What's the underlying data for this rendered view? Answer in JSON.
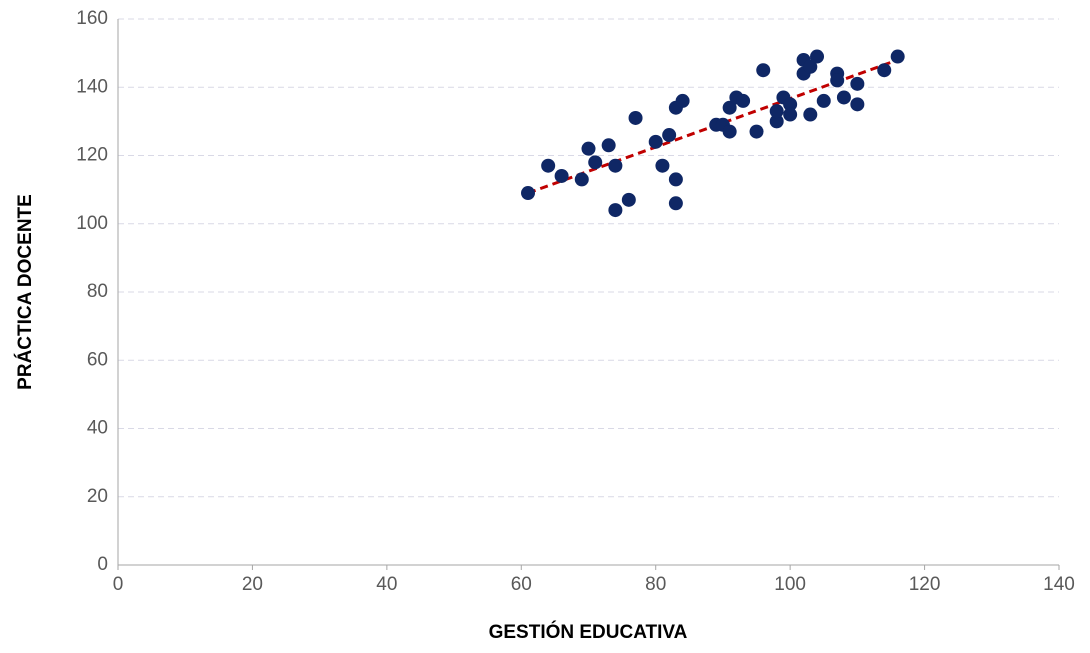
{
  "chart_data": {
    "type": "scatter",
    "x_label": "GESTIÓN EDUCATIVA",
    "y_label": "PRÁCTICA DOCENTE",
    "xlim": [
      0,
      140
    ],
    "xticks": [
      0,
      20,
      40,
      60,
      80,
      100,
      120,
      140
    ],
    "ylim": [
      0,
      160
    ],
    "yticks": [
      0,
      20,
      40,
      60,
      80,
      100,
      120,
      140,
      160
    ],
    "grid": true,
    "color": "#0f2765",
    "x": [
      61,
      64,
      66,
      69,
      70,
      71,
      73,
      74,
      74,
      76,
      77,
      80,
      81,
      82,
      83,
      84,
      83,
      83,
      89,
      90,
      91,
      91,
      92,
      93,
      95,
      96,
      98,
      98,
      99,
      100,
      100,
      102,
      102,
      103,
      103,
      104,
      105,
      107,
      107,
      108,
      110,
      110,
      114,
      116
    ],
    "values": [
      109,
      117,
      114,
      113,
      122,
      118,
      123,
      117,
      104,
      107,
      131,
      124,
      117,
      126,
      134,
      136,
      113,
      106,
      129,
      129,
      134,
      127,
      137,
      136,
      127,
      145,
      130,
      133,
      137,
      135,
      132,
      144,
      148,
      146,
      132,
      149,
      136,
      144,
      142,
      137,
      141,
      135,
      145,
      149
    ],
    "trendline": {
      "x": [
        61,
        116
      ],
      "values": [
        109,
        148
      ],
      "color": "#c00000"
    }
  }
}
